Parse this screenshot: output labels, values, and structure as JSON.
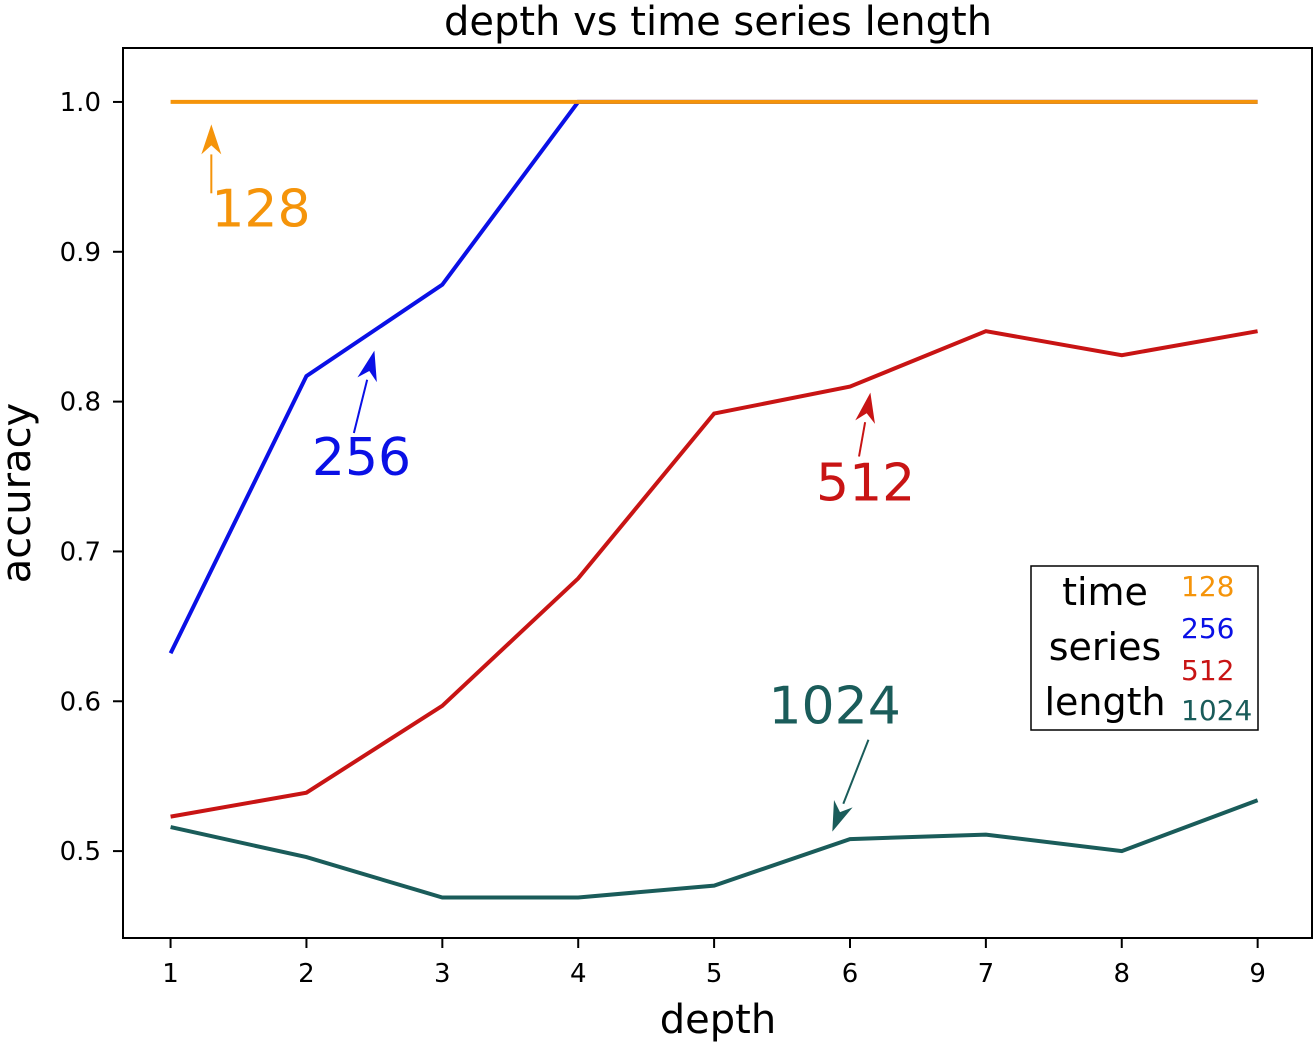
{
  "chart_data": {
    "type": "line",
    "title": "depth vs time series length",
    "xlabel": "depth",
    "ylabel": "accuracy",
    "x": [
      1,
      2,
      3,
      4,
      5,
      6,
      7,
      8,
      9
    ],
    "xlim": [
      0.65,
      9.4
    ],
    "ylim": [
      0.442,
      1.036
    ],
    "xticks": [
      1,
      2,
      3,
      4,
      5,
      6,
      7,
      8,
      9
    ],
    "yticks": [
      0.5,
      0.6,
      0.7,
      0.8,
      0.9,
      1.0
    ],
    "ytick_labels": [
      "0.5",
      "0.6",
      "0.7",
      "0.8",
      "0.9",
      "1.0"
    ],
    "grid": false,
    "series": [
      {
        "name": "128",
        "color": "#f5940a",
        "values": [
          1.0,
          1.0,
          1.0,
          1.0,
          1.0,
          1.0,
          1.0,
          1.0,
          1.0
        ]
      },
      {
        "name": "256",
        "color": "#0a10e6",
        "values": [
          0.632,
          0.817,
          0.878,
          1.0,
          1.0,
          1.0,
          1.0,
          1.0,
          1.0
        ]
      },
      {
        "name": "512",
        "color": "#c81414",
        "values": [
          0.523,
          0.539,
          0.597,
          0.682,
          0.792,
          0.81,
          0.847,
          0.831,
          0.847
        ]
      },
      {
        "name": "1024",
        "color": "#1a5c5a",
        "values": [
          0.516,
          0.496,
          0.469,
          0.469,
          0.477,
          0.508,
          0.511,
          0.5,
          0.534
        ]
      }
    ],
    "annotations": [
      {
        "text": "128",
        "color": "#f5940a",
        "text_at": [
          1.3,
          0.917
        ],
        "arrow_to": [
          1.3,
          0.985
        ]
      },
      {
        "text": "256",
        "color": "#0a10e6",
        "text_at": [
          2.04,
          0.751
        ],
        "arrow_to": [
          2.5,
          0.834
        ]
      },
      {
        "text": "512",
        "color": "#c81414",
        "text_at": [
          5.75,
          0.734
        ],
        "arrow_to": [
          6.15,
          0.806
        ]
      },
      {
        "text": "1024",
        "color": "#1a5c5a",
        "text_at": [
          5.4,
          0.585
        ],
        "arrow_to": [
          5.87,
          0.513
        ]
      }
    ],
    "legend": {
      "title_lines": [
        "time",
        "series",
        "length"
      ],
      "placement": "center-right"
    }
  }
}
